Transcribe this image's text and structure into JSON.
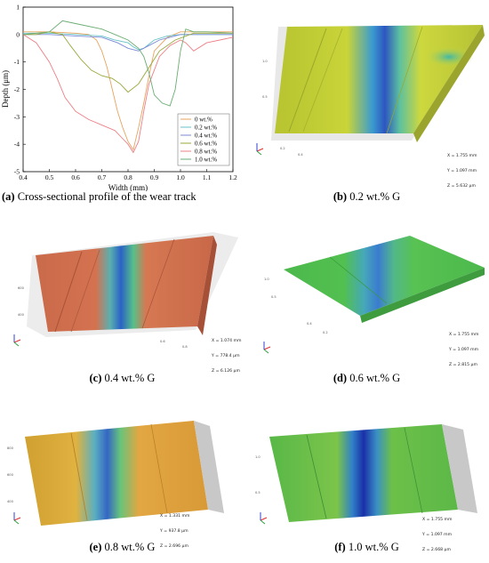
{
  "figure": {
    "panels": [
      {
        "id": "a",
        "label": "(a)",
        "text": "Cross-sectional profile of the wear track"
      },
      {
        "id": "b",
        "label": "(b)",
        "text": "0.2 wt.% G",
        "readout": [
          "X = 1.755 mm",
          "Y = 1.097 mm",
          "Z = 5.632 µm"
        ]
      },
      {
        "id": "c",
        "label": "(c)",
        "text": "0.4 wt.% G",
        "readout": [
          "X = 1.074 mm",
          "Y = 778.4 µm",
          "Z = 6.126 µm"
        ]
      },
      {
        "id": "d",
        "label": "(d)",
        "text": "0.6 wt.% G",
        "readout": [
          "X = 1.755 mm",
          "Y = 1.097 mm",
          "Z = 2.815 µm"
        ]
      },
      {
        "id": "e",
        "label": "(e)",
        "text": "0.8 wt.% G",
        "readout": [
          "X = 1.331 mm",
          "Y = 937.8 µm",
          "Z = 2.696 µm"
        ]
      },
      {
        "id": "f",
        "label": "(f)",
        "text": "1.0 wt.% G",
        "readout": [
          "X = 1.755 mm",
          "Y = 1.097 mm",
          "Z = 2.668 µm"
        ]
      }
    ]
  },
  "colors": {
    "s0": "#e8a35e",
    "s02": "#66c2c9",
    "s04": "#7b8ad6",
    "s06": "#9aa839",
    "s08": "#ee7f86",
    "s10": "#6aad72"
  },
  "chart_data": {
    "type": "line",
    "xlabel": "Width (mm)",
    "ylabel": "Depth (μm)",
    "xlim": [
      0.4,
      1.2
    ],
    "ylim": [
      -5,
      1
    ],
    "xticks": [
      "0.4",
      "0.5",
      "0.6",
      "0.7",
      "0.8",
      "0.9",
      "1.0",
      "1.1",
      "1.2"
    ],
    "yticks": [
      "1",
      "0",
      "-1",
      "-2",
      "-3",
      "-4",
      "-5"
    ],
    "legend_position": "bottom-right",
    "grid": false,
    "series": [
      {
        "name": "0 wt.%",
        "color": "#e8a35e",
        "x": [
          0.4,
          0.5,
          0.6,
          0.65,
          0.68,
          0.7,
          0.72,
          0.74,
          0.76,
          0.78,
          0.8,
          0.82,
          0.84,
          0.86,
          0.88,
          0.9,
          0.95,
          1.0,
          1.1,
          1.2
        ],
        "y": [
          0.1,
          0.1,
          0.05,
          0.0,
          -0.2,
          -0.6,
          -1.2,
          -2.0,
          -2.8,
          -3.4,
          -3.9,
          -4.2,
          -3.4,
          -2.5,
          -1.5,
          -0.6,
          -0.1,
          0.1,
          0.1,
          0.1
        ]
      },
      {
        "name": "0.2 wt.%",
        "color": "#66c2c9",
        "x": [
          0.4,
          0.5,
          0.6,
          0.7,
          0.75,
          0.8,
          0.82,
          0.84,
          0.86,
          0.88,
          0.9,
          0.95,
          1.0,
          1.1,
          1.2
        ],
        "y": [
          0.05,
          0.05,
          0.0,
          -0.05,
          -0.2,
          -0.3,
          -0.45,
          -0.55,
          -0.5,
          -0.35,
          -0.2,
          -0.05,
          0.0,
          0.0,
          0.0
        ]
      },
      {
        "name": "0.4 wt.%",
        "color": "#7b8ad6",
        "x": [
          0.4,
          0.5,
          0.6,
          0.7,
          0.76,
          0.8,
          0.84,
          0.88,
          0.92,
          0.96,
          1.0,
          1.1,
          1.2
        ],
        "y": [
          0.0,
          0.0,
          -0.05,
          -0.1,
          -0.3,
          -0.5,
          -0.6,
          -0.4,
          -0.2,
          -0.1,
          0.0,
          0.0,
          0.0
        ]
      },
      {
        "name": "0.6 wt.%",
        "color": "#9aa839",
        "x": [
          0.4,
          0.45,
          0.5,
          0.55,
          0.58,
          0.62,
          0.66,
          0.7,
          0.74,
          0.77,
          0.8,
          0.84,
          0.88,
          0.92,
          0.98,
          1.05,
          1.1,
          1.2
        ],
        "y": [
          0.0,
          0.0,
          0.1,
          0.0,
          -0.4,
          -0.9,
          -1.3,
          -1.5,
          -1.6,
          -1.8,
          -2.1,
          -1.8,
          -1.2,
          -0.6,
          -0.2,
          0.05,
          0.05,
          0.05
        ]
      },
      {
        "name": "0.8 wt.%",
        "color": "#ee7f86",
        "x": [
          0.4,
          0.45,
          0.5,
          0.53,
          0.56,
          0.6,
          0.65,
          0.7,
          0.75,
          0.78,
          0.8,
          0.82,
          0.84,
          0.86,
          0.88,
          0.92,
          0.96,
          1.0,
          1.02,
          1.05,
          1.1,
          1.2
        ],
        "y": [
          0.0,
          -0.3,
          -1.0,
          -1.6,
          -2.3,
          -2.8,
          -3.1,
          -3.3,
          -3.5,
          -3.8,
          -4.0,
          -4.3,
          -3.9,
          -2.8,
          -1.8,
          -0.8,
          -0.4,
          -0.2,
          -0.3,
          -0.6,
          -0.3,
          -0.1
        ]
      },
      {
        "name": "1.0 wt.%",
        "color": "#6aad72",
        "x": [
          0.4,
          0.5,
          0.55,
          0.6,
          0.7,
          0.75,
          0.8,
          0.84,
          0.86,
          0.88,
          0.9,
          0.93,
          0.96,
          0.98,
          1.0,
          1.02,
          1.05,
          1.1,
          1.2
        ],
        "y": [
          0.0,
          0.1,
          0.5,
          0.4,
          0.2,
          0.0,
          -0.2,
          -0.5,
          -0.8,
          -1.4,
          -2.2,
          -2.5,
          -2.6,
          -2.0,
          -0.6,
          0.2,
          0.1,
          0.1,
          0.05
        ]
      }
    ]
  }
}
